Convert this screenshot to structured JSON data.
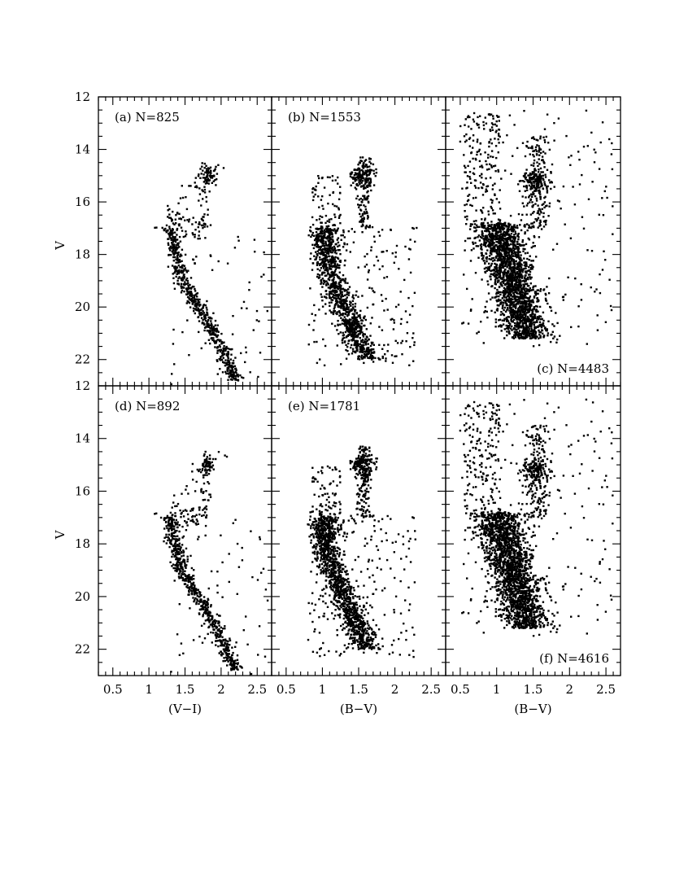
{
  "chart_data": [
    {
      "type": "scatter",
      "panel": "a",
      "annotation": "(a) N=825",
      "n_points": 825,
      "xlabel": "",
      "ylabel": "V",
      "xlim": [
        0.3,
        2.7
      ],
      "ylim": [
        23,
        12
      ],
      "x_ticks": [
        "0.5",
        "1",
        "1.5",
        "2",
        "2.5"
      ],
      "y_ticks": [
        "12",
        "14",
        "16",
        "18",
        "20",
        "22"
      ],
      "band": "VI"
    },
    {
      "type": "scatter",
      "panel": "b",
      "annotation": "(b) N=1553",
      "n_points": 1553,
      "xlabel": "",
      "ylabel": "",
      "xlim": [
        0.3,
        2.7
      ],
      "ylim": [
        23,
        12
      ],
      "x_ticks": [
        "0.5",
        "1",
        "1.5",
        "2",
        "2.5"
      ],
      "y_ticks": [],
      "band": "BV"
    },
    {
      "type": "scatter",
      "panel": "c",
      "annotation": "(c) N=4483",
      "n_points": 4483,
      "xlabel": "",
      "ylabel": "",
      "xlim": [
        0.3,
        2.7
      ],
      "ylim": [
        23,
        12
      ],
      "x_ticks": [
        "0.5",
        "1",
        "1.5",
        "2",
        "2.5"
      ],
      "y_ticks": [],
      "band": "BVwide"
    },
    {
      "type": "scatter",
      "panel": "d",
      "annotation": "(d) N=892",
      "n_points": 892,
      "xlabel": "(V−I)",
      "ylabel": "V",
      "xlim": [
        0.3,
        2.7
      ],
      "ylim": [
        23,
        12
      ],
      "x_ticks": [
        "0.5",
        "1",
        "1.5",
        "2",
        "2.5"
      ],
      "y_ticks": [
        "12",
        "14",
        "16",
        "18",
        "20",
        "22"
      ],
      "band": "VI"
    },
    {
      "type": "scatter",
      "panel": "e",
      "annotation": "(e) N=1781",
      "n_points": 1781,
      "xlabel": "(B−V)",
      "ylabel": "",
      "xlim": [
        0.3,
        2.7
      ],
      "ylim": [
        23,
        12
      ],
      "x_ticks": [
        "0.5",
        "1",
        "1.5",
        "2",
        "2.5"
      ],
      "y_ticks": [],
      "band": "BV"
    },
    {
      "type": "scatter",
      "panel": "f",
      "annotation": "(f) N=4616",
      "n_points": 4616,
      "xlabel": "(B−V)",
      "ylabel": "",
      "xlim": [
        0.3,
        2.7
      ],
      "ylim": [
        23,
        12
      ],
      "x_ticks": [
        "0.5",
        "1",
        "1.5",
        "2",
        "2.5"
      ],
      "y_ticks": [],
      "band": "BVwide"
    }
  ],
  "colors": {
    "ink": "#000000",
    "background": "#ffffff"
  }
}
